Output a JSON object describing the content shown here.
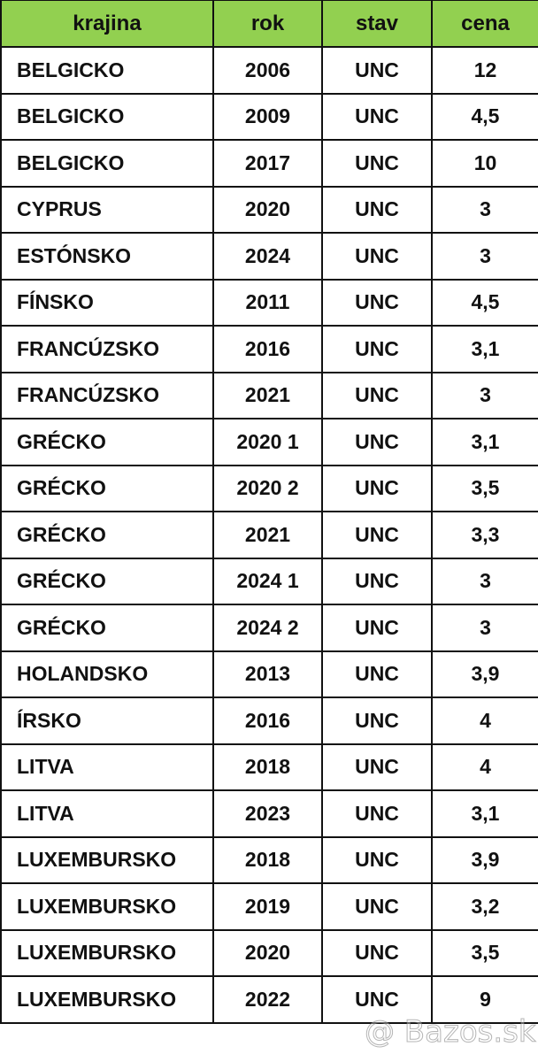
{
  "table": {
    "headers": [
      "krajina",
      "rok",
      "stav",
      "cena"
    ],
    "header_color": "#92d050",
    "rows": [
      [
        "BELGICKO",
        "2006",
        "UNC",
        "12"
      ],
      [
        "BELGICKO",
        "2009",
        "UNC",
        "4,5"
      ],
      [
        "BELGICKO",
        "2017",
        "UNC",
        "10"
      ],
      [
        "CYPRUS",
        "2020",
        "UNC",
        "3"
      ],
      [
        "ESTÓNSKO",
        "2024",
        "UNC",
        "3"
      ],
      [
        "FÍNSKO",
        "2011",
        "UNC",
        "4,5"
      ],
      [
        "FRANCÚZSKO",
        "2016",
        "UNC",
        "3,1"
      ],
      [
        "FRANCÚZSKO",
        "2021",
        "UNC",
        "3"
      ],
      [
        "GRÉCKO",
        "2020 1",
        "UNC",
        "3,1"
      ],
      [
        "GRÉCKO",
        "2020 2",
        "UNC",
        "3,5"
      ],
      [
        "GRÉCKO",
        "2021",
        "UNC",
        "3,3"
      ],
      [
        "GRÉCKO",
        "2024 1",
        "UNC",
        "3"
      ],
      [
        "GRÉCKO",
        "2024 2",
        "UNC",
        "3"
      ],
      [
        "HOLANDSKO",
        "2013",
        "UNC",
        "3,9"
      ],
      [
        "ÍRSKO",
        "2016",
        "UNC",
        "4"
      ],
      [
        "LITVA",
        "2018",
        "UNC",
        "4"
      ],
      [
        "LITVA",
        "2023",
        "UNC",
        "3,1"
      ],
      [
        "LUXEMBURSKO",
        "2018",
        "UNC",
        "3,9"
      ],
      [
        "LUXEMBURSKO",
        "2019",
        "UNC",
        "3,2"
      ],
      [
        "LUXEMBURSKO",
        "2020",
        "UNC",
        "3,5"
      ],
      [
        "LUXEMBURSKO",
        "2022",
        "UNC",
        "9"
      ]
    ]
  },
  "watermark": "@ Bazos.sk"
}
